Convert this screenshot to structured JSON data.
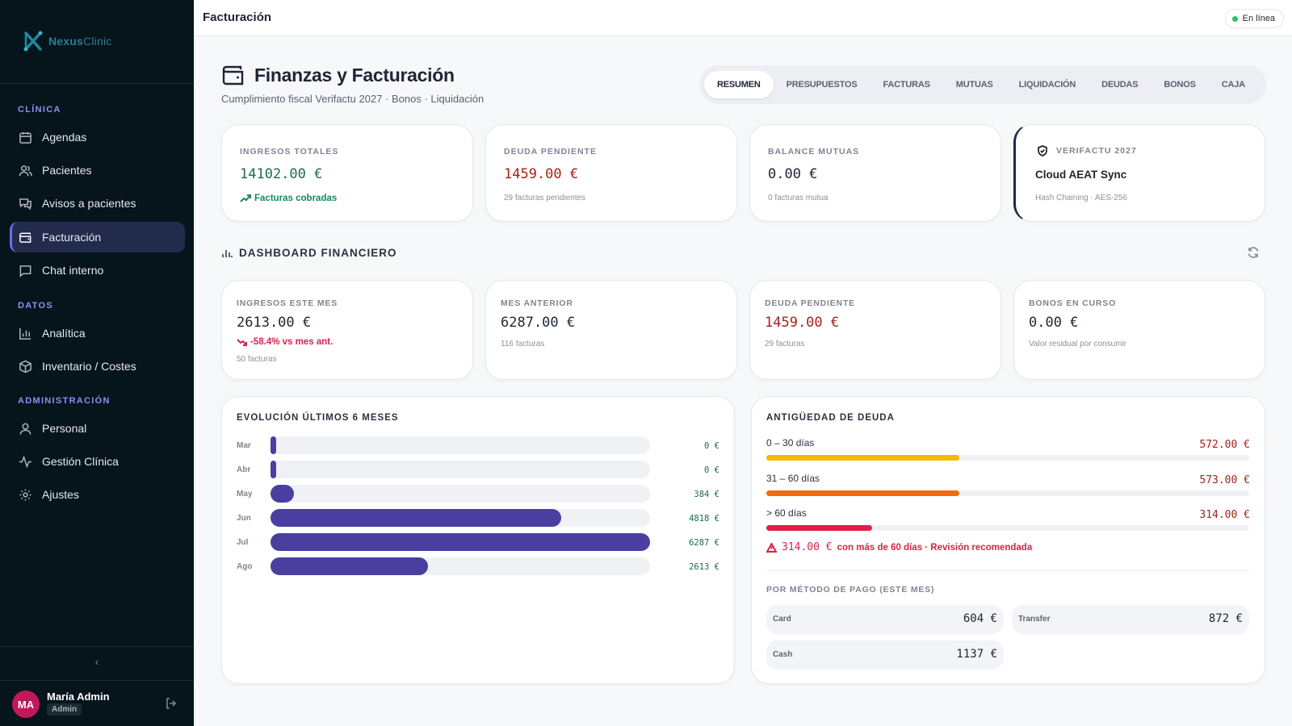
{
  "brand": {
    "name_a": "Nexus",
    "name_b": "Clinic"
  },
  "sidebar": {
    "sections": {
      "clinica": "CLÍNICA",
      "datos": "DATOS",
      "admin": "ADMINISTRACIÓN"
    },
    "items": [
      {
        "label": "Agendas",
        "icon": "calendar-icon"
      },
      {
        "label": "Pacientes",
        "icon": "users-icon"
      },
      {
        "label": "Avisos a pacientes",
        "icon": "messages-icon"
      },
      {
        "label": "Facturación",
        "icon": "wallet-icon",
        "active": true
      },
      {
        "label": "Chat interno",
        "icon": "chat-icon"
      },
      {
        "label": "Analítica",
        "icon": "bar-chart-icon"
      },
      {
        "label": "Inventario / Costes",
        "icon": "box-icon"
      },
      {
        "label": "Personal",
        "icon": "user-icon"
      },
      {
        "label": "Gestión Clínica",
        "icon": "activity-icon"
      },
      {
        "label": "Ajustes",
        "icon": "gear-icon"
      }
    ],
    "collapse_glyph": "‹"
  },
  "user": {
    "initials": "MA",
    "name": "María Admin",
    "role": "Admin"
  },
  "topbar": {
    "title": "Facturación",
    "status": "En línea"
  },
  "header": {
    "title": "Finanzas y Facturación",
    "subtitle": "Cumplimiento fiscal Verifactu 2027 · Bonos · Liquidación"
  },
  "tabs": [
    "RESUMEN",
    "PRESUPUESTOS",
    "FACTURAS",
    "MUTUAS",
    "LIQUIDACIÓN",
    "DEUDAS",
    "BONOS",
    "CAJA"
  ],
  "kpis": {
    "ingresos": {
      "label": "INGRESOS TOTALES",
      "value": "14102.00 €",
      "note": "Facturas cobradas"
    },
    "deuda": {
      "label": "DEUDA PENDIENTE",
      "value": "1459.00 €",
      "note": "29 facturas pendientes"
    },
    "mutuas": {
      "label": "BALANCE MUTUAS",
      "value": "0.00 €",
      "note": "0 facturas mutua"
    },
    "verifactu": {
      "label": "VERIFACTU 2027",
      "title": "Cloud AEAT Sync",
      "note": "Hash Chaining · AES-256"
    }
  },
  "dashboard": {
    "title": "DASHBOARD FINANCIERO"
  },
  "stats": {
    "mes": {
      "label": "INGRESOS ESTE MES",
      "value": "2613.00 €",
      "trend": "-58.4% vs mes ant.",
      "note": "50 facturas"
    },
    "anterior": {
      "label": "MES ANTERIOR",
      "value": "6287.00 €",
      "note": "116 facturas"
    },
    "deuda": {
      "label": "DEUDA PENDIENTE",
      "value": "1459.00 €",
      "note": "29 facturas"
    },
    "bonos": {
      "label": "BONOS EN CURSO",
      "value": "0.00 €",
      "note": "Valor residual por consumir"
    }
  },
  "evolution": {
    "title": "EVOLUCIÓN ÚLTIMOS 6 MESES",
    "max": 6287,
    "rows": [
      {
        "month": "Mar",
        "value": 0,
        "label": "0 €"
      },
      {
        "month": "Abr",
        "value": 0,
        "label": "0 €"
      },
      {
        "month": "May",
        "value": 384,
        "label": "384 €"
      },
      {
        "month": "Jun",
        "value": 4818,
        "label": "4818 €"
      },
      {
        "month": "Jul",
        "value": 6287,
        "label": "6287 €"
      },
      {
        "month": "Ago",
        "value": 2613,
        "label": "2613 €"
      }
    ]
  },
  "aging": {
    "title": "ANTIGÜEDAD DE DEUDA",
    "total": 1459,
    "rows": [
      {
        "label": "0 – 30 días",
        "value": "572.00 €",
        "amount": 572,
        "color": "#f5b800"
      },
      {
        "label": "31 – 60 días",
        "value": "573.00 €",
        "amount": 573,
        "color": "#f06c0f"
      },
      {
        "label": "> 60 días",
        "value": "314.00 €",
        "amount": 314,
        "color": "#e11d48"
      }
    ],
    "warning_amount": "314.00 €",
    "warning_text": "con más de 60 días · Revisión recomendada",
    "payment_title": "POR MÉTODO DE PAGO (ESTE MES)",
    "payments": [
      {
        "name": "Card",
        "value": "604 €"
      },
      {
        "name": "Transfer",
        "value": "872 €"
      },
      {
        "name": "Cash",
        "value": "1137 €"
      }
    ]
  }
}
